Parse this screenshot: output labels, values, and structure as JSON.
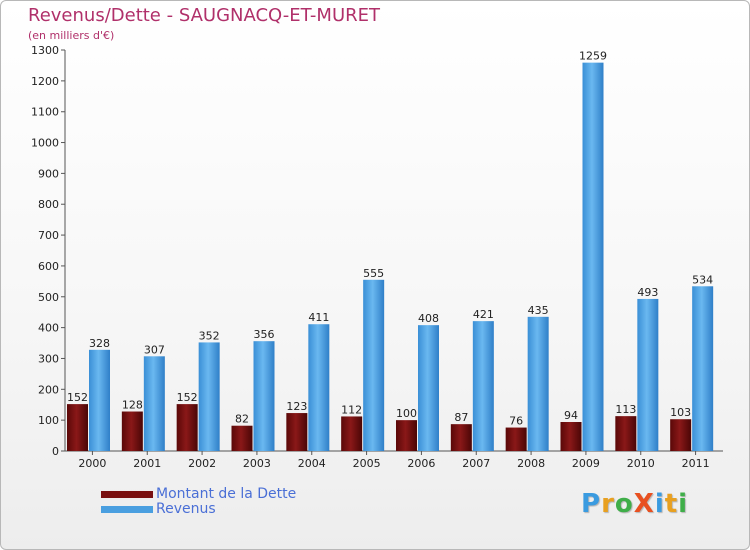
{
  "chart_data": {
    "type": "bar",
    "title": "Revenus/Dette - SAUGNACQ-ET-MURET",
    "subtitle": "(en milliers d'€)",
    "categories": [
      "2000",
      "2001",
      "2002",
      "2003",
      "2004",
      "2005",
      "2006",
      "2007",
      "2008",
      "2009",
      "2010",
      "2011"
    ],
    "series": [
      {
        "name": "Montant de la Dette",
        "color": "#7a1010",
        "values": [
          152,
          128,
          152,
          82,
          123,
          112,
          100,
          87,
          76,
          94,
          113,
          103
        ]
      },
      {
        "name": "Revenus",
        "color": "#4a9fe0",
        "values": [
          328,
          307,
          352,
          356,
          411,
          555,
          408,
          421,
          435,
          1259,
          493,
          534
        ]
      }
    ],
    "ylim": [
      0,
      1300
    ],
    "yticks": [
      0,
      100,
      200,
      300,
      400,
      500,
      600,
      700,
      800,
      900,
      1000,
      1100,
      1200,
      1300
    ],
    "grid": false,
    "legend_position": "bottom-left"
  },
  "logo": {
    "text": "ProXiti",
    "letters": [
      "P",
      "r",
      "o",
      "X",
      "i",
      "t",
      "i"
    ],
    "colors": [
      "#3a9be0",
      "#e8a020",
      "#3fae49",
      "#e85020",
      "#3a9be0",
      "#e8a020",
      "#3fae49"
    ]
  }
}
